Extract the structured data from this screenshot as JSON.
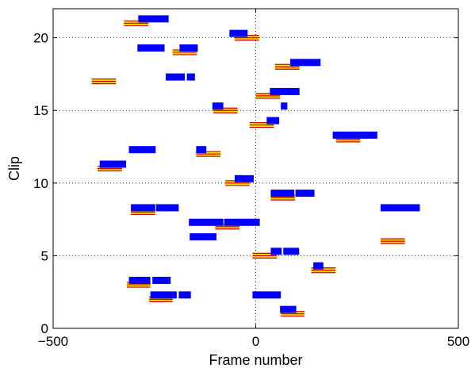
{
  "chart_data": {
    "type": "scatter",
    "title": "",
    "xlabel": "Frame number",
    "ylabel": "Clip",
    "xlim": [
      -500,
      500
    ],
    "ylim": [
      0,
      22
    ],
    "xticks": [
      -500,
      0,
      500
    ],
    "yticks": [
      0,
      5,
      10,
      15,
      20
    ],
    "xtick_labels": [
      "−500",
      "0",
      "500"
    ],
    "ytick_labels": [
      "0",
      "5",
      "10",
      "15",
      "20"
    ],
    "grid": true,
    "legend": "none",
    "colors": {
      "blue": "#0000ff",
      "ref_fill": "#ffdd00",
      "ref_edge": "#cc0000",
      "axis": "#000000",
      "grid": "#000000"
    },
    "series": [
      {
        "style": "blue-bar",
        "segments": [
          {
            "clip": 1.3,
            "x0": 60,
            "x1": 100
          },
          {
            "clip": 2.3,
            "x0": -260,
            "x1": -195
          },
          {
            "clip": 2.3,
            "x0": -190,
            "x1": -160
          },
          {
            "clip": 2.3,
            "x0": -8,
            "x1": 62
          },
          {
            "clip": 3.3,
            "x0": -313,
            "x1": -260
          },
          {
            "clip": 3.3,
            "x0": -255,
            "x1": -210
          },
          {
            "clip": 4.3,
            "x0": 142,
            "x1": 167
          },
          {
            "clip": 5.3,
            "x0": 37,
            "x1": 64
          },
          {
            "clip": 5.3,
            "x0": 68,
            "x1": 107
          },
          {
            "clip": 6.3,
            "x0": -163,
            "x1": -97
          },
          {
            "clip": 7.3,
            "x0": -165,
            "x1": -80
          },
          {
            "clip": 7.3,
            "x0": -78,
            "x1": 10
          },
          {
            "clip": 8.3,
            "x0": -308,
            "x1": -248
          },
          {
            "clip": 8.3,
            "x0": -246,
            "x1": -190
          },
          {
            "clip": 8.3,
            "x0": 308,
            "x1": 405
          },
          {
            "clip": 9.3,
            "x0": 37,
            "x1": 95
          },
          {
            "clip": 9.3,
            "x0": 98,
            "x1": 145
          },
          {
            "clip": 10.3,
            "x0": -52,
            "x1": -5
          },
          {
            "clip": 11.3,
            "x0": -385,
            "x1": -320
          },
          {
            "clip": 12.3,
            "x0": -313,
            "x1": -247
          },
          {
            "clip": 12.3,
            "x0": -147,
            "x1": -122
          },
          {
            "clip": 13.3,
            "x0": 190,
            "x1": 300
          },
          {
            "clip": 14.3,
            "x0": 27,
            "x1": 58
          },
          {
            "clip": 15.3,
            "x0": -107,
            "x1": -80
          },
          {
            "clip": 15.3,
            "x0": 62,
            "x1": 78
          },
          {
            "clip": 16.3,
            "x0": 35,
            "x1": 108
          },
          {
            "clip": 17.3,
            "x0": -222,
            "x1": -175
          },
          {
            "clip": 17.3,
            "x0": -170,
            "x1": -150
          },
          {
            "clip": 18.3,
            "x0": 85,
            "x1": 160
          },
          {
            "clip": 19.3,
            "x0": -292,
            "x1": -225
          },
          {
            "clip": 19.3,
            "x0": -188,
            "x1": -143
          },
          {
            "clip": 20.3,
            "x0": -65,
            "x1": -20
          },
          {
            "clip": 21.3,
            "x0": -290,
            "x1": -215
          }
        ]
      },
      {
        "style": "reference-bar",
        "segments": [
          {
            "clip": 1,
            "x0": 62,
            "x1": 120
          },
          {
            "clip": 2,
            "x0": -263,
            "x1": -205
          },
          {
            "clip": 3,
            "x0": -318,
            "x1": -260
          },
          {
            "clip": 4,
            "x0": 137,
            "x1": 197
          },
          {
            "clip": 5,
            "x0": -8,
            "x1": 52
          },
          {
            "clip": 6,
            "x0": 308,
            "x1": 368
          },
          {
            "clip": 7,
            "x0": -100,
            "x1": -40
          },
          {
            "clip": 8,
            "x0": -308,
            "x1": -248
          },
          {
            "clip": 9,
            "x0": 37,
            "x1": 97
          },
          {
            "clip": 10,
            "x0": -75,
            "x1": -15
          },
          {
            "clip": 11,
            "x0": -390,
            "x1": -330
          },
          {
            "clip": 12,
            "x0": -147,
            "x1": -87
          },
          {
            "clip": 13,
            "x0": 198,
            "x1": 258
          },
          {
            "clip": 14,
            "x0": -15,
            "x1": 45
          },
          {
            "clip": 15,
            "x0": -105,
            "x1": -45
          },
          {
            "clip": 16,
            "x0": 0,
            "x1": 60
          },
          {
            "clip": 17,
            "x0": -405,
            "x1": -345
          },
          {
            "clip": 18,
            "x0": 48,
            "x1": 108
          },
          {
            "clip": 19,
            "x0": -205,
            "x1": -145
          },
          {
            "clip": 20,
            "x0": -52,
            "x1": 8
          },
          {
            "clip": 21,
            "x0": -325,
            "x1": -265
          }
        ]
      }
    ]
  }
}
